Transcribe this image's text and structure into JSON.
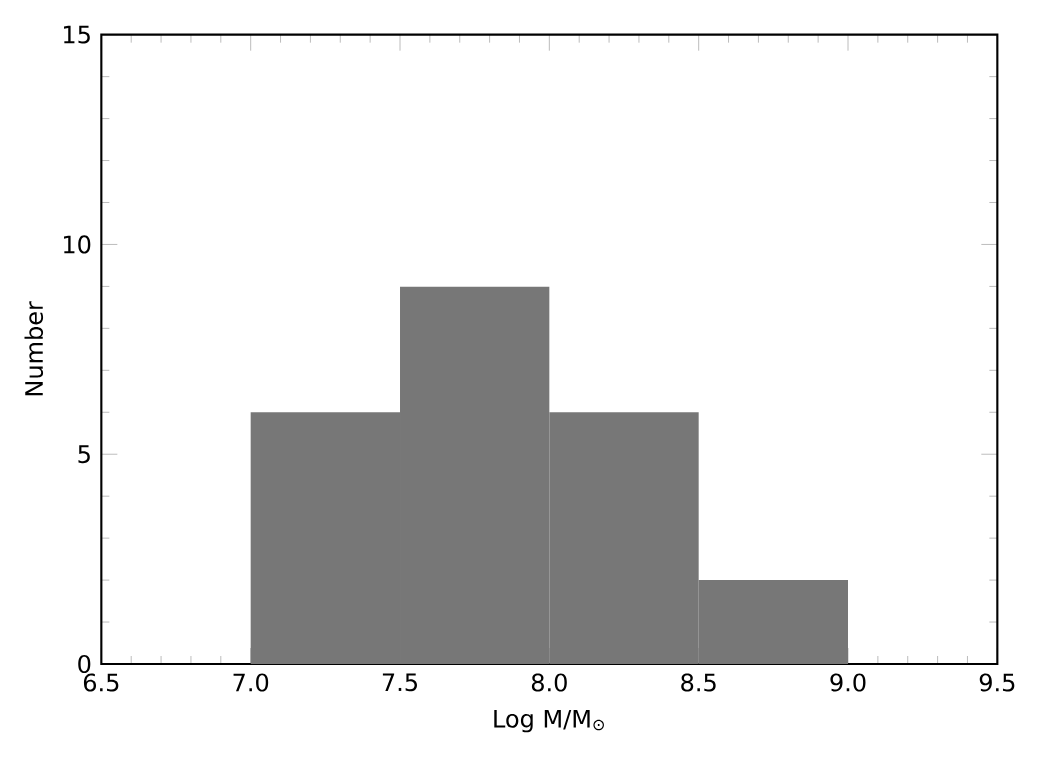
{
  "chart_data": {
    "type": "histogram",
    "xlabel": "Log M/M$_{⊙}$",
    "ylabel": "Number",
    "bins": [
      7.0,
      7.5,
      8.0,
      8.5,
      9.0
    ],
    "values": [
      6,
      9,
      6,
      2
    ],
    "color": "#777777",
    "xlim": [
      6.5,
      9.5
    ],
    "ylim": [
      0,
      15
    ],
    "xticks": [
      {
        "value": 6.5,
        "label": "6.5"
      },
      {
        "value": 7.0,
        "label": "7.0"
      },
      {
        "value": 7.5,
        "label": "7.5"
      },
      {
        "value": 8.0,
        "label": "8.0"
      },
      {
        "value": 8.5,
        "label": "8.5"
      },
      {
        "value": 9.0,
        "label": "9.0"
      },
      {
        "value": 9.5,
        "label": "9.5"
      }
    ],
    "yticks": [
      0,
      5,
      10,
      15
    ]
  }
}
